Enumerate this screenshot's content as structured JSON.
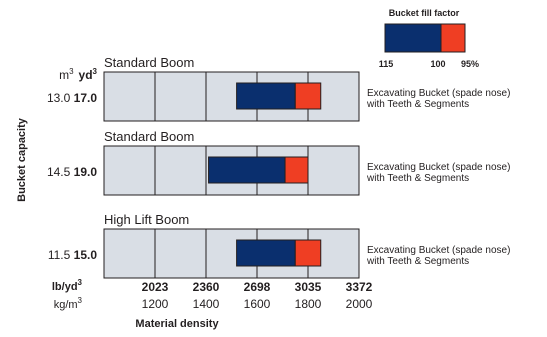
{
  "chart_data": {
    "type": "bar",
    "xlabel": "Material density",
    "ylabel": "Bucket capacity",
    "x_axis": {
      "unit_primary": "lb/yd",
      "unit_primary_sup": "3",
      "ticks_primary": [
        "2023",
        "2360",
        "2698",
        "3035",
        "3372"
      ],
      "unit_secondary": "kg/m",
      "unit_secondary_sup": "3",
      "ticks_secondary": [
        "1200",
        "1400",
        "1600",
        "1800",
        "2000"
      ],
      "range_kg_m3": [
        1000,
        2000
      ]
    },
    "y_units": {
      "metric": "m",
      "metric_sup": "3",
      "imperial": "yd",
      "imperial_sup": "3"
    },
    "legend": {
      "title": "Bucket fill factor",
      "labels": [
        "115",
        "100",
        "95%"
      ],
      "colors": {
        "fill_115_100": "#0a2f6e",
        "fill_100_95": "#ef3e23"
      },
      "placement": "top-right"
    },
    "rows": [
      {
        "boom": "Standard Boom",
        "capacity_m3": "13.0",
        "capacity_yd3": "17.0",
        "bucket_line1": "Excavating Bucket (spade nose)",
        "bucket_line2": "with Teeth & Segments",
        "density_115": 1520,
        "density_100": 1750,
        "density_95": 1850
      },
      {
        "boom": "Standard Boom",
        "capacity_m3": "14.5",
        "capacity_yd3": "19.0",
        "bucket_line1": "Excavating Bucket (spade nose)",
        "bucket_line2": "with Teeth & Segments",
        "density_115": 1410,
        "density_100": 1710,
        "density_95": 1800
      },
      {
        "boom": "High Lift Boom",
        "capacity_m3": "11.5",
        "capacity_yd3": "15.0",
        "bucket_line1": "Excavating Bucket (spade nose)",
        "bucket_line2": "with Teeth & Segments",
        "density_115": 1520,
        "density_100": 1750,
        "density_95": 1850
      }
    ]
  }
}
